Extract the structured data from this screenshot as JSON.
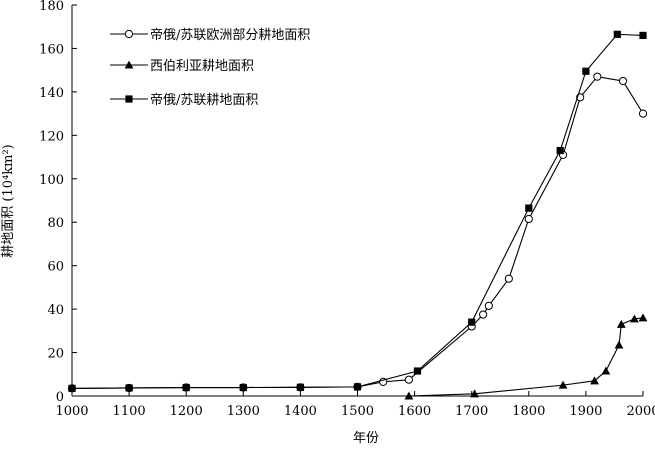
{
  "chart_data": {
    "type": "line",
    "xlabel": "年份",
    "ylabel": "耕地面积 (10⁴km²)",
    "xlim": [
      1000,
      2000
    ],
    "ylim": [
      0,
      180
    ],
    "xticks": [
      1000,
      1100,
      1200,
      1300,
      1400,
      1500,
      1600,
      1700,
      1800,
      1900,
      2000
    ],
    "yticks": [
      0,
      20,
      40,
      60,
      80,
      100,
      120,
      140,
      160,
      180
    ],
    "grid": false,
    "legend_position": "top-left",
    "series": [
      {
        "name": "帝俄/苏联欧洲部分耕地面积",
        "marker": "open-circle",
        "color": "#000000",
        "points": [
          [
            1000,
            3.5
          ],
          [
            1100,
            3.7
          ],
          [
            1200,
            3.9
          ],
          [
            1300,
            3.9
          ],
          [
            1400,
            4
          ],
          [
            1500,
            4.2
          ],
          [
            1545,
            6.5
          ],
          [
            1590,
            7.5
          ],
          [
            1700,
            32
          ],
          [
            1720,
            37.5
          ],
          [
            1730,
            41.5
          ],
          [
            1765,
            54
          ],
          [
            1800,
            81.5
          ],
          [
            1860,
            111
          ],
          [
            1890,
            137.5
          ],
          [
            1920,
            147
          ],
          [
            1965,
            145
          ],
          [
            2000,
            130
          ]
        ]
      },
      {
        "name": "西伯利亚耕地面积",
        "marker": "filled-triangle",
        "color": "#000000",
        "points": [
          [
            1590,
            0
          ],
          [
            1705,
            1
          ],
          [
            1860,
            5
          ],
          [
            1915,
            7
          ],
          [
            1935,
            11.5
          ],
          [
            1958,
            23.5
          ],
          [
            1962,
            33
          ],
          [
            1985,
            35.5
          ],
          [
            2000,
            36
          ]
        ]
      },
      {
        "name": "帝俄/苏联耕地面积",
        "marker": "filled-square",
        "color": "#000000",
        "points": [
          [
            1000,
            3.5
          ],
          [
            1100,
            3.7
          ],
          [
            1200,
            3.9
          ],
          [
            1300,
            3.9
          ],
          [
            1400,
            4
          ],
          [
            1500,
            4.2
          ],
          [
            1605,
            11.5
          ],
          [
            1700,
            34
          ],
          [
            1800,
            86.5
          ],
          [
            1855,
            113
          ],
          [
            1900,
            149.5
          ],
          [
            1955,
            166.5
          ],
          [
            2000,
            166
          ]
        ]
      }
    ]
  }
}
